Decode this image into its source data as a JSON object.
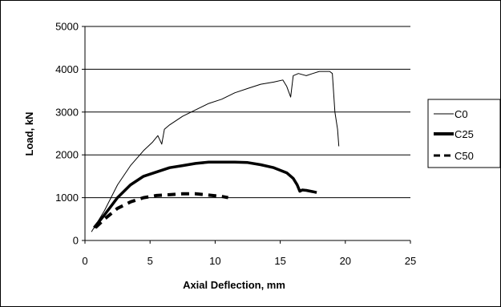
{
  "chart_data": {
    "type": "line",
    "title": "",
    "xlabel": "Axial Deflection, mm",
    "ylabel": "Load, kN",
    "xlim": [
      0,
      25
    ],
    "ylim": [
      0,
      5000
    ],
    "xticks": [
      0,
      5,
      10,
      15,
      20,
      25
    ],
    "yticks": [
      0,
      1000,
      2000,
      3000,
      4000,
      5000
    ],
    "grid": "horizontal",
    "legend_position": "right",
    "series": [
      {
        "name": "C0",
        "color": "#000000",
        "style": "solid-thin",
        "x": [
          0.5,
          1.5,
          2.5,
          3.5,
          4.5,
          5.2,
          5.6,
          5.9,
          6.1,
          6.5,
          7.5,
          8.5,
          9.5,
          10.5,
          11.5,
          12.5,
          13.5,
          14.5,
          15.2,
          15.5,
          15.8,
          16.0,
          16.4,
          17.0,
          17.5,
          18.0,
          18.5,
          18.8,
          19.0,
          19.2,
          19.4,
          19.5
        ],
        "y": [
          200,
          700,
          1300,
          1750,
          2100,
          2300,
          2450,
          2250,
          2600,
          2700,
          2900,
          3050,
          3200,
          3300,
          3450,
          3550,
          3650,
          3700,
          3750,
          3600,
          3350,
          3850,
          3900,
          3850,
          3900,
          3950,
          3950,
          3950,
          3900,
          3000,
          2600,
          2200
        ]
      },
      {
        "name": "C25",
        "color": "#000000",
        "style": "solid-thick",
        "x": [
          0.7,
          1.5,
          2.5,
          3.5,
          4.5,
          5.5,
          6.5,
          7.5,
          8.5,
          9.5,
          10.5,
          11.5,
          12.5,
          13.5,
          14.5,
          15.5,
          16.0,
          16.3,
          16.5,
          16.7,
          17.0,
          17.5,
          17.8
        ],
        "y": [
          300,
          600,
          1000,
          1300,
          1500,
          1600,
          1700,
          1750,
          1800,
          1830,
          1830,
          1830,
          1820,
          1770,
          1700,
          1580,
          1450,
          1300,
          1150,
          1180,
          1170,
          1140,
          1120
        ]
      },
      {
        "name": "C50",
        "color": "#000000",
        "style": "dashed",
        "x": [
          0.8,
          1.5,
          2.5,
          3.5,
          4.5,
          5.5,
          6.5,
          7.5,
          8.5,
          9.5,
          10.5,
          11.0
        ],
        "y": [
          300,
          500,
          750,
          900,
          1000,
          1050,
          1070,
          1090,
          1090,
          1060,
          1030,
          1000
        ]
      }
    ]
  }
}
